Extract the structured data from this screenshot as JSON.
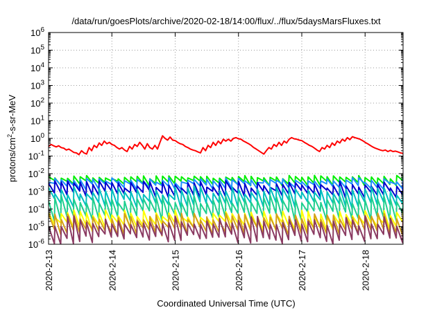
{
  "chart_data": {
    "type": "line",
    "title": "/data/run/goesPlots/archive/2020-02-18/14:00/flux/../flux/5daysMarsFluxes.txt",
    "xlabel": "Coordinated Universal Time (UTC)",
    "ylabel_base": "protons/cm",
    "ylabel_sup": "2",
    "ylabel_rest": "-s-sr-MeV",
    "x_ticks": [
      "2020-2-13",
      "2020-2-14",
      "2020-2-15",
      "2020-2-16",
      "2020-2-17",
      "2020-2-18"
    ],
    "x_tick_days": [
      0,
      1,
      2,
      3,
      4,
      5
    ],
    "xlim_days": [
      0,
      5.6
    ],
    "y_scale": "log",
    "ylim": [
      1e-06,
      1000000.0
    ],
    "y_tick_base": "10",
    "y_tick_exponents": [
      "-6",
      "-5",
      "-4",
      "-3",
      "-2",
      "-1",
      "0",
      "1",
      "2",
      "3",
      "4",
      "5",
      "6"
    ],
    "grid": true,
    "legend": "none",
    "series": [
      {
        "color": "#ff0000",
        "points": [
          [
            0,
            0.35
          ],
          [
            0.04,
            0.45
          ],
          [
            0.08,
            0.38
          ],
          [
            0.12,
            0.33
          ],
          [
            0.16,
            0.38
          ],
          [
            0.2,
            0.3
          ],
          [
            0.24,
            0.28
          ],
          [
            0.28,
            0.22
          ],
          [
            0.32,
            0.25
          ],
          [
            0.36,
            0.2
          ],
          [
            0.4,
            0.16
          ],
          [
            0.44,
            0.15
          ],
          [
            0.48,
            0.12
          ],
          [
            0.52,
            0.2
          ],
          [
            0.56,
            0.15
          ],
          [
            0.6,
            0.13
          ],
          [
            0.64,
            0.3
          ],
          [
            0.68,
            0.2
          ],
          [
            0.72,
            0.4
          ],
          [
            0.76,
            0.3
          ],
          [
            0.8,
            0.55
          ],
          [
            0.84,
            0.4
          ],
          [
            0.88,
            0.7
          ],
          [
            0.92,
            0.5
          ],
          [
            0.96,
            0.6
          ],
          [
            1.0,
            0.45
          ],
          [
            1.04,
            0.4
          ],
          [
            1.08,
            0.3
          ],
          [
            1.12,
            0.25
          ],
          [
            1.16,
            0.3
          ],
          [
            1.2,
            0.22
          ],
          [
            1.24,
            0.18
          ],
          [
            1.28,
            0.35
          ],
          [
            1.32,
            0.25
          ],
          [
            1.36,
            0.45
          ],
          [
            1.4,
            0.35
          ],
          [
            1.44,
            0.6
          ],
          [
            1.48,
            0.4
          ],
          [
            1.52,
            0.25
          ],
          [
            1.56,
            0.5
          ],
          [
            1.6,
            0.3
          ],
          [
            1.64,
            0.25
          ],
          [
            1.68,
            0.4
          ],
          [
            1.72,
            0.25
          ],
          [
            1.76,
            0.6
          ],
          [
            1.8,
            1.4
          ],
          [
            1.84,
            1.0
          ],
          [
            1.88,
            0.8
          ],
          [
            1.92,
            1.2
          ],
          [
            1.96,
            0.8
          ],
          [
            2.0,
            0.75
          ],
          [
            2.04,
            0.6
          ],
          [
            2.08,
            0.5
          ],
          [
            2.12,
            0.45
          ],
          [
            2.16,
            0.35
          ],
          [
            2.2,
            0.3
          ],
          [
            2.24,
            0.25
          ],
          [
            2.28,
            0.22
          ],
          [
            2.32,
            0.2
          ],
          [
            2.36,
            0.17
          ],
          [
            2.4,
            0.15
          ],
          [
            2.44,
            0.3
          ],
          [
            2.48,
            0.2
          ],
          [
            2.52,
            0.4
          ],
          [
            2.56,
            0.3
          ],
          [
            2.6,
            0.6
          ],
          [
            2.64,
            0.4
          ],
          [
            2.68,
            0.7
          ],
          [
            2.72,
            0.5
          ],
          [
            2.76,
            0.9
          ],
          [
            2.8,
            0.7
          ],
          [
            2.84,
            0.9
          ],
          [
            2.88,
            0.7
          ],
          [
            2.92,
            1.0
          ],
          [
            2.96,
            1.1
          ],
          [
            3.0,
            0.95
          ],
          [
            3.04,
            0.9
          ],
          [
            3.08,
            0.7
          ],
          [
            3.12,
            0.6
          ],
          [
            3.16,
            0.5
          ],
          [
            3.2,
            0.4
          ],
          [
            3.24,
            0.3
          ],
          [
            3.28,
            0.25
          ],
          [
            3.32,
            0.2
          ],
          [
            3.36,
            0.16
          ],
          [
            3.4,
            0.13
          ],
          [
            3.44,
            0.2
          ],
          [
            3.48,
            0.3
          ],
          [
            3.52,
            0.25
          ],
          [
            3.56,
            0.45
          ],
          [
            3.6,
            0.35
          ],
          [
            3.64,
            0.6
          ],
          [
            3.68,
            0.4
          ],
          [
            3.72,
            0.7
          ],
          [
            3.76,
            0.55
          ],
          [
            3.8,
            0.9
          ],
          [
            3.84,
            1.1
          ],
          [
            3.88,
            0.95
          ],
          [
            3.92,
            0.9
          ],
          [
            3.96,
            0.8
          ],
          [
            4.0,
            0.75
          ],
          [
            4.04,
            0.6
          ],
          [
            4.08,
            0.5
          ],
          [
            4.12,
            0.4
          ],
          [
            4.16,
            0.35
          ],
          [
            4.2,
            0.28
          ],
          [
            4.24,
            0.22
          ],
          [
            4.28,
            0.18
          ],
          [
            4.32,
            0.3
          ],
          [
            4.36,
            0.25
          ],
          [
            4.4,
            0.4
          ],
          [
            4.44,
            0.3
          ],
          [
            4.48,
            0.55
          ],
          [
            4.52,
            0.4
          ],
          [
            4.56,
            0.7
          ],
          [
            4.6,
            0.55
          ],
          [
            4.64,
            0.9
          ],
          [
            4.68,
            0.7
          ],
          [
            4.72,
            1.1
          ],
          [
            4.76,
            0.85
          ],
          [
            4.8,
            1.25
          ],
          [
            4.84,
            1.1
          ],
          [
            4.88,
            1.0
          ],
          [
            4.92,
            0.9
          ],
          [
            4.96,
            0.75
          ],
          [
            5.0,
            0.6
          ],
          [
            5.04,
            0.5
          ],
          [
            5.08,
            0.4
          ],
          [
            5.12,
            0.33
          ],
          [
            5.16,
            0.28
          ],
          [
            5.2,
            0.25
          ],
          [
            5.24,
            0.22
          ],
          [
            5.28,
            0.2
          ],
          [
            5.32,
            0.22
          ],
          [
            5.36,
            0.18
          ],
          [
            5.4,
            0.21
          ],
          [
            5.44,
            0.18
          ],
          [
            5.48,
            0.19
          ],
          [
            5.52,
            0.17
          ],
          [
            5.56,
            0.15
          ],
          [
            5.6,
            0.14
          ]
        ]
      },
      {
        "color": "#00ee00",
        "start": 0.005,
        "peaks": [
          0.005,
          0.008
        ],
        "troughs": [
          0.002,
          0.0045
        ],
        "period": 0.1,
        "seed": 11
      },
      {
        "color": "#1e90ff",
        "start": 0.003,
        "peaks": [
          0.003,
          0.006
        ],
        "troughs": [
          0.0012,
          0.003
        ],
        "period": 0.1,
        "seed": 23
      },
      {
        "color": "#0000cd",
        "start": 0.0015,
        "peaks": [
          0.0015,
          0.004
        ],
        "troughs": [
          0.0004,
          0.0012
        ],
        "period": 0.1,
        "seed": 37
      },
      {
        "color": "#00bfbf",
        "start": 0.0008,
        "peaks": [
          0.0006,
          0.002
        ],
        "troughs": [
          0.0001,
          0.0004
        ],
        "period": 0.1,
        "seed": 41
      },
      {
        "color": "#1fcf8f",
        "start": 0.0002,
        "peaks": [
          0.0002,
          0.0006
        ],
        "troughs": [
          2e-05,
          8e-05
        ],
        "period": 0.1,
        "seed": 53
      },
      {
        "color": "#ffff00",
        "start": 4e-05,
        "peaks": [
          3e-05,
          9e-05
        ],
        "troughs": [
          5e-06,
          2e-05
        ],
        "period": 0.1,
        "seed": 61
      },
      {
        "color": "#d4a017",
        "start": 2e-05,
        "peaks": [
          2e-05,
          6e-05
        ],
        "troughs": [
          3e-06,
          1e-05
        ],
        "period": 0.1,
        "seed": 67
      },
      {
        "color": "#8b3a62",
        "start": 1e-05,
        "peaks": [
          1e-05,
          4e-05
        ],
        "troughs": [
          1e-06,
          4e-06
        ],
        "period": 0.1,
        "seed": 71
      }
    ]
  }
}
